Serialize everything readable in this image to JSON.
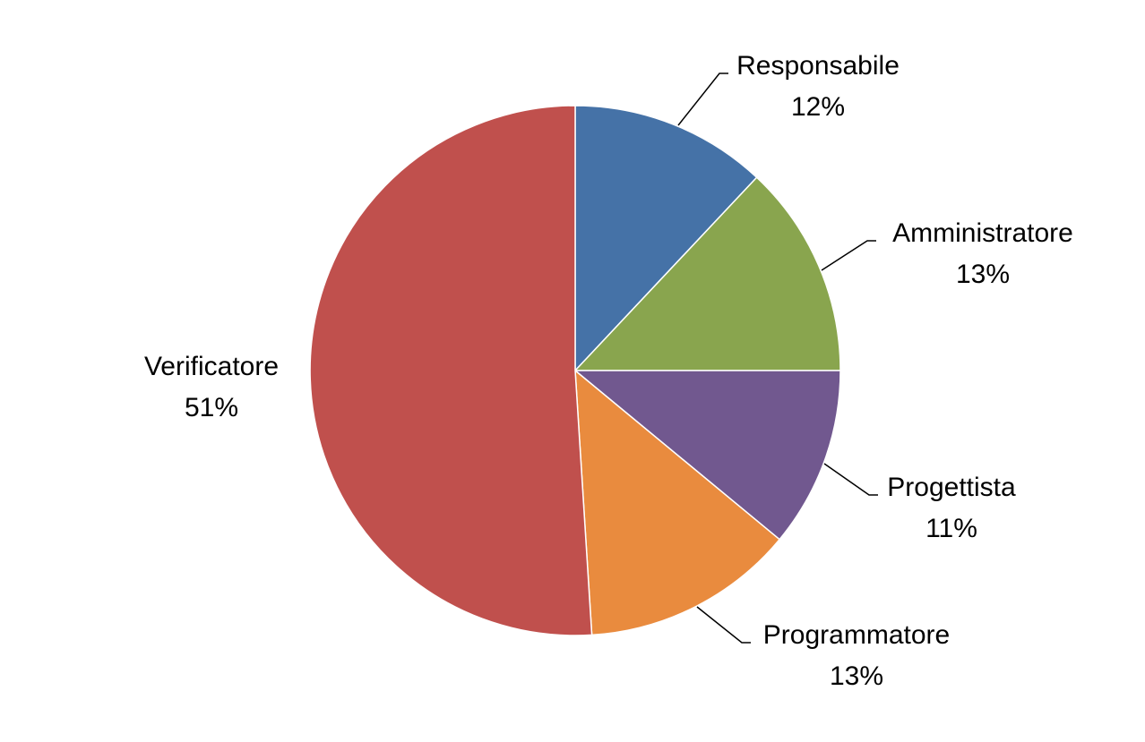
{
  "chart_data": {
    "type": "pie",
    "title": "",
    "categories": [
      "Responsabile",
      "Amministratore",
      "Progettista",
      "Programmatore",
      "Verificatore"
    ],
    "values": [
      12,
      13,
      11,
      13,
      51
    ],
    "value_labels": [
      "12%",
      "13%",
      "11%",
      "13%",
      "51%"
    ],
    "colors": [
      "#4572A7",
      "#89A54E",
      "#71588F",
      "#E98B3E",
      "#C0504D"
    ],
    "start_angle_deg": 0,
    "direction": "clockwise",
    "legend": "none",
    "data_labels": "outside-with-leader-lines"
  }
}
